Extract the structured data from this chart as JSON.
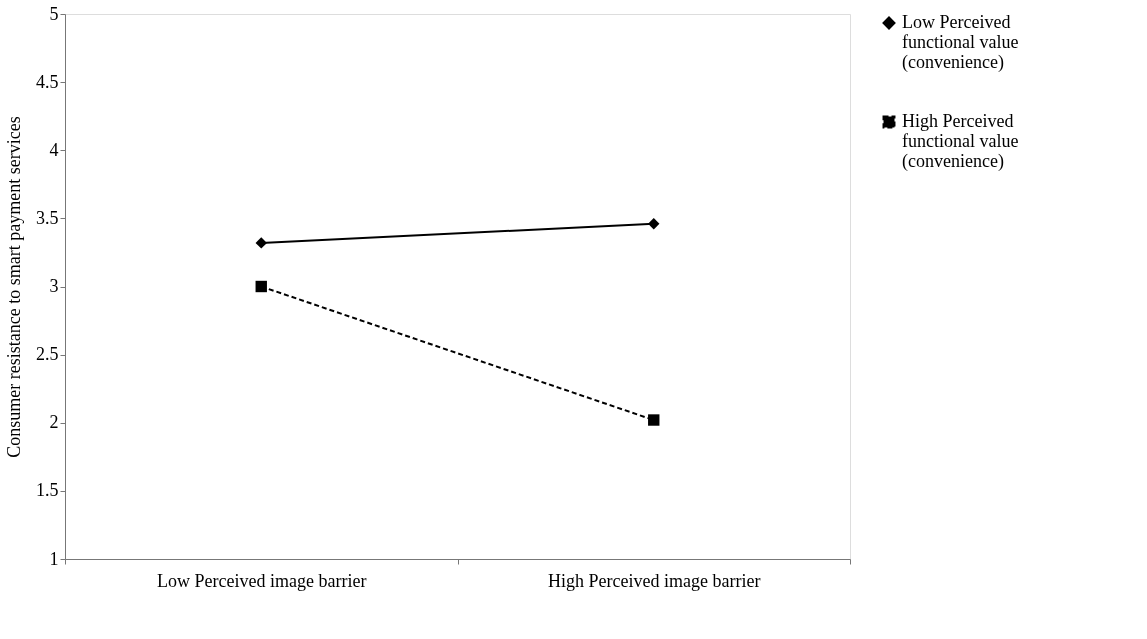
{
  "chart_data": {
    "type": "line",
    "ylabel": "Consumer resistance to smart payment services",
    "categories": [
      "Low Perceived image barrier",
      "High Perceived image barrier"
    ],
    "ylim": [
      1,
      5
    ],
    "yticks": [
      1,
      1.5,
      2,
      2.5,
      3,
      3.5,
      4,
      4.5,
      5
    ],
    "grid": false,
    "legend": "right",
    "series": [
      {
        "name": "Low Perceived functional value (convenience)",
        "color": "#000000",
        "values": [
          3.32,
          3.46
        ],
        "marker": "diamond",
        "line_style": "solid"
      },
      {
        "name": "High Perceived functional value (convenience)",
        "color": "#000000",
        "values": [
          3.0,
          2.02
        ],
        "marker": "square",
        "line_style": "dashed"
      }
    ]
  }
}
